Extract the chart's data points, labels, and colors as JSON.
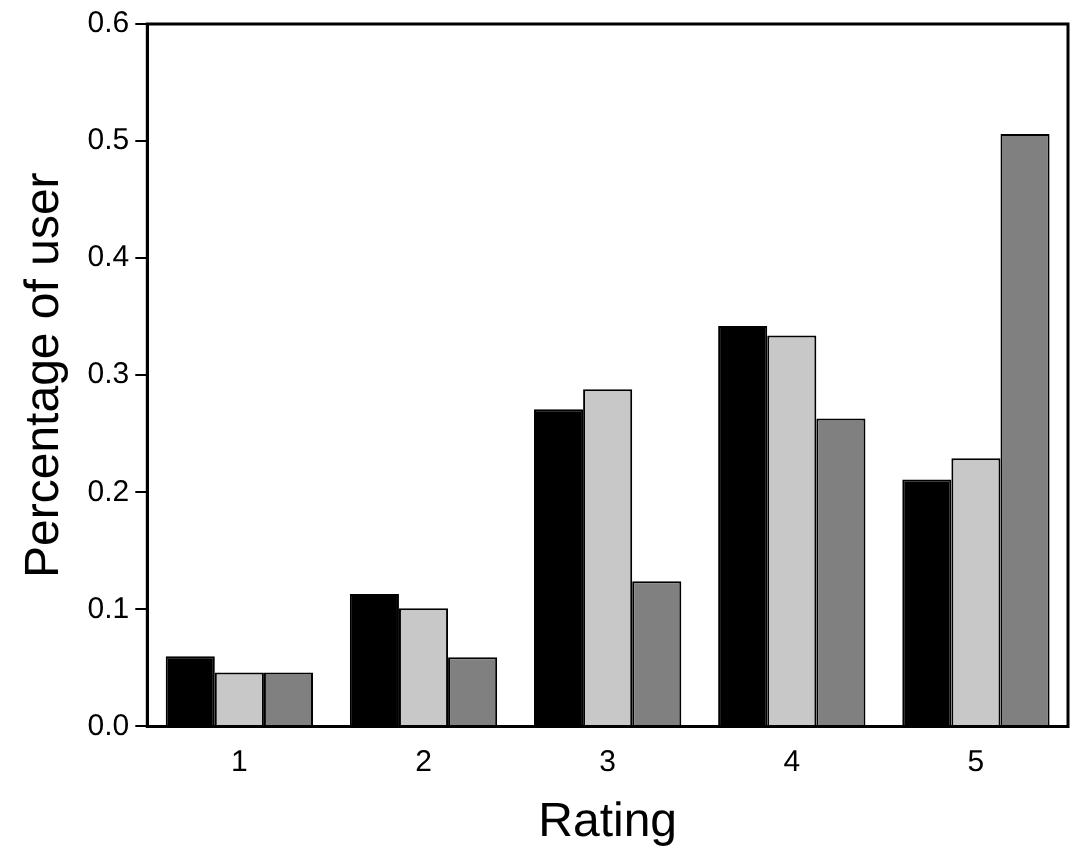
{
  "chart_data": {
    "type": "bar",
    "xlabel": "Rating",
    "ylabel": "Percentage of user",
    "categories": [
      "1",
      "2",
      "3",
      "4",
      "5"
    ],
    "series": [
      {
        "color": "#000000",
        "values": [
          0.06,
          0.113,
          0.271,
          0.342,
          0.211
        ]
      },
      {
        "color": "#c8c8c8",
        "values": [
          0.046,
          0.101,
          0.288,
          0.334,
          0.229
        ]
      },
      {
        "color": "#808080",
        "values": [
          0.046,
          0.059,
          0.124,
          0.263,
          0.506
        ]
      }
    ],
    "ylim": [
      0,
      0.6
    ],
    "yticks": [
      {
        "value": 0,
        "label": "0.0"
      },
      {
        "value": 0.1,
        "label": "0.1"
      },
      {
        "value": 0.2,
        "label": "0.2"
      },
      {
        "value": 0.3,
        "label": "0.3"
      },
      {
        "value": 0.4,
        "label": "0.4"
      },
      {
        "value": 0.5,
        "label": "0.5"
      },
      {
        "value": 0.6,
        "label": "0.6"
      }
    ],
    "grid": false,
    "legend": false
  }
}
